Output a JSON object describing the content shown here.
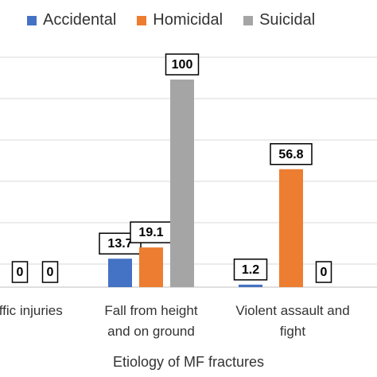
{
  "chart_data": {
    "type": "bar",
    "xlabel": "Etiology of MF fractures",
    "ylabel": "",
    "ylim": [
      0,
      100
    ],
    "grid": true,
    "legend_position": "top",
    "categories": [
      "Road traffic injuries",
      "Fall from height and on ground",
      "Violent assault and fight"
    ],
    "categories_visible": [
      "affic injuries",
      "Fall from height\nand on ground",
      "Violent assault and\nfight"
    ],
    "series": [
      {
        "name": "Accidental",
        "color": "#4472C4",
        "values": [
          null,
          13.7,
          1.2
        ],
        "labels": [
          "",
          "13.7",
          "1.2"
        ]
      },
      {
        "name": "Homicidal",
        "color": "#ED7D31",
        "values": [
          0,
          19.1,
          56.8
        ],
        "labels": [
          "0",
          "19.1",
          "56.8"
        ]
      },
      {
        "name": "Suicidal",
        "color": "#A5A5A5",
        "values": [
          0,
          100,
          0
        ],
        "labels": [
          "0",
          "100",
          "0"
        ]
      }
    ]
  }
}
